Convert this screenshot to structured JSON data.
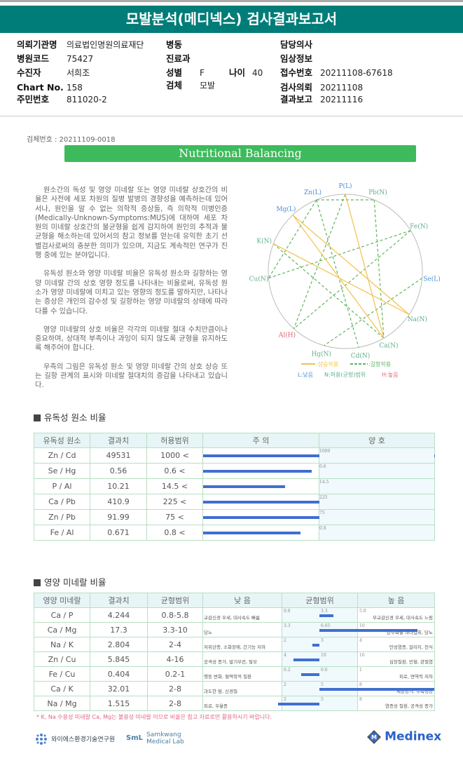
{
  "title": "모발분석(메디넥스) 검사결과보고서",
  "info": {
    "institution_label": "의뢰기관명",
    "institution": "의료법인명원의료재단",
    "hospital_code_label": "병원코드",
    "hospital_code": "75427",
    "patient_label": "수진자",
    "patient": "서희조",
    "chart_label": "Chart No.",
    "chart": "158",
    "resident_label": "주민번호",
    "resident": "811020-2",
    "ward_label": "병동",
    "ward": "",
    "dept_label": "진료과",
    "dept": "",
    "sex_label": "성별",
    "sex": "F",
    "age_label": "나이",
    "age": "40",
    "specimen_label": "검체",
    "specimen": "모발",
    "doctor_label": "담당의사",
    "doctor": "",
    "clinical_label": "임상정보",
    "clinical": "",
    "receipt_label": "접수번호",
    "receipt": "20211108-67618",
    "request_label": "검사의뢰",
    "request": "20211108",
    "report_label": "결과보고",
    "report": "20211116"
  },
  "specimen_no": "검체번호 : 20211109-0018",
  "banner": "Nutritional Balancing",
  "intro": [
    "원소간의 독성 및 영양 미네랄 또는 영양 미네랄 상호간의 비율은 사전에 세포 차원의 질병 발병의 경향성을 예측하는데 있어서나, 원인을 알 수 없는 의학적 증상들, 즉 의학적 미병인증(Medically-Unknown-Symptoms:MUS)에 대하여 세포 차원의 미네랄 상호간의 불균형을 쉽게 감지하여 원인의 추적과 불균형을 해소하는데 있어서의 참고 정보를 얻는데 유익한 초기 선별검사로써의 충분한 의미가 있으며, 지금도 계속적인 연구가 진행 중에 있는 분야입니다.",
    "유독성 원소와 영양 미네랄 비율은 유독성 원소와 길항하는 영양 미네랄 간의 상호 영향 정도를 나타내는 비율로써, 유독성 원소가 영양 미네랄에 미치고 있는 영향의 정도를 말하지만, 나타나는 증상은 개인의 감수성 및 길항하는 영양 미네랄의 상태에 따라 다를 수 있습니다.",
    "영양 미네랄의 상호 비율은 각각의 미네랄 절대 수치만큼이나 중요하며, 상대적 부족이나 과잉이 되지 않도록 균형을 유지하도록 해주어야 합니다.",
    "우측의 그림은 유독성 원소 및 영양 미네랄 간의 상호 상승 또는 길항 관계의 표시와 미네랄 절대치의 증감을 나타내고 있습니다."
  ],
  "wheel": {
    "elements": [
      {
        "label": "P(L)",
        "level": "L"
      },
      {
        "label": "Pb(N)",
        "level": "N"
      },
      {
        "label": "Fe(N)",
        "level": "N"
      },
      {
        "label": "Se(L)",
        "level": "L"
      },
      {
        "label": "Na(N)",
        "level": "N"
      },
      {
        "label": "Ca(N)",
        "level": "N"
      },
      {
        "label": "Cd(N)",
        "level": "N"
      },
      {
        "label": "Hg(N)",
        "level": "N"
      },
      {
        "label": "Al(H)",
        "level": "H"
      },
      {
        "label": "Cu(N)",
        "level": "N"
      },
      {
        "label": "K(N)",
        "level": "N"
      },
      {
        "label": "Mg(L)",
        "level": "L"
      },
      {
        "label": "Zn(L)",
        "level": "L"
      }
    ],
    "synergy": [
      [
        "P(L)",
        "Ca(N)"
      ],
      [
        "Mg(L)",
        "Na(N)"
      ],
      [
        "Mg(L)",
        "Ca(N)"
      ],
      [
        "K(N)",
        "Na(N)"
      ]
    ],
    "antagonism": [
      [
        "Zn(L)",
        "Pb(N)"
      ],
      [
        "Zn(L)",
        "Cu(N)"
      ],
      [
        "Zn(L)",
        "Cd(N)"
      ],
      [
        "P(L)",
        "Al(H)"
      ],
      [
        "Pb(N)",
        "Ca(N)"
      ],
      [
        "Fe(N)",
        "Cu(N)"
      ],
      [
        "Fe(N)",
        "Al(H)"
      ],
      [
        "K(N)",
        "Ca(N)"
      ],
      [
        "Se(L)",
        "Hg(N)"
      ]
    ],
    "legend_synergy": ":상승작용",
    "legend_antagonism": ":길항작용",
    "legend_low": "L:낮음",
    "legend_normal": "N:허용(균형)범위",
    "legend_high": "H:높음",
    "colors": {
      "L": "#4a8fd6",
      "N": "#5fae8a",
      "H": "#e0606a",
      "synergy": "#f2c14e",
      "antagonism": "#5fb55f"
    }
  },
  "toxic": {
    "title": "유독성 원소 비율",
    "headers": [
      "유독성 원소",
      "결과치",
      "허용범위",
      "주    의",
      "양    호"
    ],
    "rows": [
      {
        "name": "Zn / Cd",
        "value": "49531",
        "range": "1000 <",
        "threshold": "1000"
      },
      {
        "name": "Se / Hg",
        "value": "0.56",
        "range": "0.6 <",
        "threshold": "0.6"
      },
      {
        "name": "P  / Al",
        "value": "10.21",
        "range": "14.5 <",
        "threshold": "14.5"
      },
      {
        "name": "Ca / Pb",
        "value": "410.9",
        "range": "225 <",
        "threshold": "225"
      },
      {
        "name": "Zn / Pb",
        "value": "91.99",
        "range": "75 <",
        "threshold": "75"
      },
      {
        "name": "Fe / Al",
        "value": "0.671",
        "range": "0.8 <",
        "threshold": "0.8"
      }
    ]
  },
  "mineral": {
    "title": "영양 미네랄 비율",
    "headers": [
      "영양 미네랄",
      "결과치",
      "균형범위",
      "낮    음",
      "균형범위",
      "높    음"
    ],
    "rows": [
      {
        "name": "Ca / P",
        "value": "4.244",
        "range": "0.8-5.8",
        "low": "0.8",
        "mid": "3.3",
        "high": "5.8",
        "low_desc": "교감신경 우세, 대사속도 빠름",
        "high_desc": "부교감신경 우세, 대사속도 느림"
      },
      {
        "name": "Ca / Mg",
        "value": "17.3",
        "range": "3.3-10",
        "low": "3.3",
        "mid": "6.65",
        "high": "10",
        "low_desc": "당뇨",
        "high_desc": "탄수화물 과다섭취, 당뇨"
      },
      {
        "name": "Na / K",
        "value": "2.804",
        "range": "2-4",
        "low": "2",
        "mid": "3",
        "high": "4",
        "low_desc": "저위산증, 소화장애, 간기능 저하",
        "high_desc": "만성염증, 알러지, 천식"
      },
      {
        "name": "Zn / Cu",
        "value": "5.845",
        "range": "4-16",
        "low": "4",
        "mid": "10",
        "high": "16",
        "low_desc": "공격성 증가, 발기부전, 탈모",
        "high_desc": "심장질환, 빈혈, 관절염"
      },
      {
        "name": "Fe / Cu",
        "value": "0.404",
        "range": "0.2-1",
        "low": "0.2",
        "mid": "0.6",
        "high": "1",
        "low_desc": "행동 변화, 혈액학적 질환",
        "high_desc": "피로, 면역력 저하"
      },
      {
        "name": "Ca / K",
        "value": "32.01",
        "range": "2-8",
        "low": "2",
        "mid": "5",
        "high": "8",
        "low_desc": "과도한 땀, 신경질",
        "high_desc": "체중증가, 수족냉증"
      },
      {
        "name": "Na / Mg",
        "value": "1.515",
        "range": "2-8",
        "low": "2",
        "mid": "5",
        "high": "8",
        "low_desc": "피로, 우울증",
        "high_desc": "염증성 질환, 공격성 증가"
      }
    ]
  },
  "footnote": "* K, Na 수용성 미네랄 Ca, Mg는 불용성 미네랄 이므로 비율은 참고 자료로만 활용하시기 바랍니다.",
  "logos": {
    "ys": "와이에스환경기술연구원",
    "sml_mark": "SmL",
    "sml_1": "Samkwang",
    "sml_2": "Medical Lab",
    "medinex": "Medinex"
  }
}
